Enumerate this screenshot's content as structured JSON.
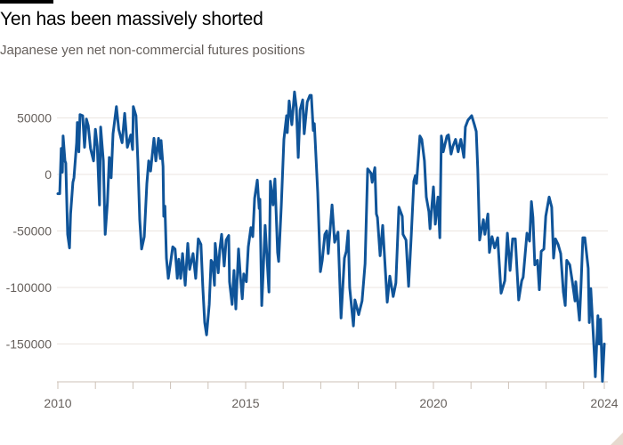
{
  "title": "Yen has been massively shorted",
  "subtitle": "Japanese yen net non-commercial futures positions",
  "chart_data": {
    "type": "line",
    "title": "Yen has been massively shorted",
    "subtitle": "Japanese yen net non-commercial futures positions",
    "xlabel": "",
    "ylabel": "",
    "xlim": [
      2010,
      2024.55
    ],
    "ylim": [
      -183000,
      75000
    ],
    "grid": true,
    "line_color": "#0f5499",
    "y_ticks": [
      50000,
      0,
      -50000,
      -100000,
      -150000
    ],
    "y_tick_labels": [
      "50000",
      "0",
      "-50000",
      "-100000",
      "-150000"
    ],
    "x_ticks": [
      2010,
      2015,
      2020,
      2024.55
    ],
    "x_tick_labels": [
      "2010",
      "2015",
      "2020",
      "2024"
    ],
    "x_minor_ticks": [
      2011,
      2012,
      2013,
      2014,
      2016,
      2017,
      2018,
      2019,
      2021,
      2022,
      2023,
      2024
    ],
    "series": [
      {
        "points": [
          [
            2010.0,
            -17000
          ],
          [
            2010.05,
            -17000
          ],
          [
            2010.09,
            23000
          ],
          [
            2010.12,
            2000
          ],
          [
            2010.14,
            34000
          ],
          [
            2010.19,
            12000
          ],
          [
            2010.21,
            10000
          ],
          [
            2010.26,
            -53000
          ],
          [
            2010.31,
            -65000
          ],
          [
            2010.34,
            -35000
          ],
          [
            2010.4,
            -7000
          ],
          [
            2010.43,
            -3000
          ],
          [
            2010.5,
            28000
          ],
          [
            2010.52,
            46000
          ],
          [
            2010.56,
            20000
          ],
          [
            2010.59,
            53000
          ],
          [
            2010.66,
            52000
          ],
          [
            2010.71,
            24000
          ],
          [
            2010.76,
            49000
          ],
          [
            2010.81,
            43000
          ],
          [
            2010.87,
            23000
          ],
          [
            2010.95,
            12000
          ],
          [
            2011.0,
            40000
          ],
          [
            2011.05,
            25000
          ],
          [
            2011.11,
            -27000
          ],
          [
            2011.14,
            42000
          ],
          [
            2011.21,
            12000
          ],
          [
            2011.26,
            -53000
          ],
          [
            2011.32,
            -25000
          ],
          [
            2011.37,
            15000
          ],
          [
            2011.42,
            -3000
          ],
          [
            2011.47,
            36000
          ],
          [
            2011.56,
            60000
          ],
          [
            2011.62,
            40000
          ],
          [
            2011.71,
            28000
          ],
          [
            2011.78,
            54000
          ],
          [
            2011.85,
            24000
          ],
          [
            2011.94,
            35000
          ],
          [
            2011.99,
            22000
          ],
          [
            2012.01,
            60000
          ],
          [
            2012.08,
            52000
          ],
          [
            2012.13,
            12000
          ],
          [
            2012.18,
            -40000
          ],
          [
            2012.23,
            -66000
          ],
          [
            2012.3,
            -55000
          ],
          [
            2012.37,
            -8000
          ],
          [
            2012.42,
            12000
          ],
          [
            2012.47,
            3000
          ],
          [
            2012.56,
            32000
          ],
          [
            2012.61,
            12000
          ],
          [
            2012.68,
            32000
          ],
          [
            2012.73,
            14000
          ],
          [
            2012.75,
            30000
          ],
          [
            2012.8,
            7000
          ],
          [
            2012.82,
            -37000
          ],
          [
            2012.85,
            -28000
          ],
          [
            2012.89,
            -74000
          ],
          [
            2012.94,
            -92000
          ],
          [
            2013.01,
            -76000
          ],
          [
            2013.06,
            -64000
          ],
          [
            2013.12,
            -66000
          ],
          [
            2013.18,
            -92000
          ],
          [
            2013.22,
            -75000
          ],
          [
            2013.27,
            -92000
          ],
          [
            2013.32,
            -70000
          ],
          [
            2013.39,
            -98000
          ],
          [
            2013.46,
            -61000
          ],
          [
            2013.51,
            -84000
          ],
          [
            2013.6,
            -70000
          ],
          [
            2013.67,
            -92000
          ],
          [
            2013.74,
            -57000
          ],
          [
            2013.81,
            -62000
          ],
          [
            2013.86,
            -100000
          ],
          [
            2013.91,
            -131000
          ],
          [
            2013.96,
            -142000
          ],
          [
            2014.03,
            -115000
          ],
          [
            2014.08,
            -76000
          ],
          [
            2014.12,
            -78000
          ],
          [
            2014.17,
            -98000
          ],
          [
            2014.19,
            -61000
          ],
          [
            2014.27,
            -87000
          ],
          [
            2014.31,
            -67000
          ],
          [
            2014.36,
            -53000
          ],
          [
            2014.43,
            -81000
          ],
          [
            2014.48,
            -58000
          ],
          [
            2014.55,
            -54000
          ],
          [
            2014.57,
            -95000
          ],
          [
            2014.64,
            -115000
          ],
          [
            2014.69,
            -85000
          ],
          [
            2014.74,
            -119000
          ],
          [
            2014.81,
            -66000
          ],
          [
            2014.86,
            -90000
          ],
          [
            2014.91,
            -110000
          ],
          [
            2014.95,
            -88000
          ],
          [
            2015.02,
            -95000
          ],
          [
            2015.07,
            -64000
          ],
          [
            2015.14,
            -47000
          ],
          [
            2015.19,
            -55000
          ],
          [
            2015.24,
            -21000
          ],
          [
            2015.31,
            -5000
          ],
          [
            2015.36,
            -30000
          ],
          [
            2015.38,
            -22000
          ],
          [
            2015.43,
            -116000
          ],
          [
            2015.47,
            -85000
          ],
          [
            2015.52,
            -45000
          ],
          [
            2015.62,
            -104000
          ],
          [
            2015.66,
            -6000
          ],
          [
            2015.73,
            -27000
          ],
          [
            2015.78,
            -4000
          ],
          [
            2015.85,
            -69000
          ],
          [
            2015.88,
            -77000
          ],
          [
            2015.95,
            -27000
          ],
          [
            2016.02,
            31000
          ],
          [
            2016.09,
            52000
          ],
          [
            2016.11,
            37000
          ],
          [
            2016.16,
            65000
          ],
          [
            2016.23,
            44000
          ],
          [
            2016.3,
            73000
          ],
          [
            2016.35,
            59000
          ],
          [
            2016.4,
            15000
          ],
          [
            2016.45,
            57000
          ],
          [
            2016.52,
            66000
          ],
          [
            2016.56,
            36000
          ],
          [
            2016.64,
            64000
          ],
          [
            2016.71,
            70000
          ],
          [
            2016.75,
            70000
          ],
          [
            2016.8,
            39000
          ],
          [
            2016.83,
            45000
          ],
          [
            2016.92,
            -16000
          ],
          [
            2016.99,
            -86000
          ],
          [
            2017.04,
            -76000
          ],
          [
            2017.11,
            -53000
          ],
          [
            2017.16,
            -50000
          ],
          [
            2017.2,
            -70000
          ],
          [
            2017.3,
            -27000
          ],
          [
            2017.37,
            -60000
          ],
          [
            2017.46,
            -51000
          ],
          [
            2017.54,
            -127000
          ],
          [
            2017.63,
            -74000
          ],
          [
            2017.68,
            -68000
          ],
          [
            2017.73,
            -50000
          ],
          [
            2017.77,
            -100000
          ],
          [
            2017.87,
            -134000
          ],
          [
            2017.91,
            -111000
          ],
          [
            2018.01,
            -124000
          ],
          [
            2018.1,
            -112000
          ],
          [
            2018.18,
            -79000
          ],
          [
            2018.25,
            5000
          ],
          [
            2018.34,
            1000
          ],
          [
            2018.37,
            -7000
          ],
          [
            2018.44,
            6000
          ],
          [
            2018.48,
            -35000
          ],
          [
            2018.51,
            -38000
          ],
          [
            2018.58,
            -72000
          ],
          [
            2018.65,
            -45000
          ],
          [
            2018.77,
            -113000
          ],
          [
            2018.84,
            -90000
          ],
          [
            2018.93,
            -108000
          ],
          [
            2019.0,
            -96000
          ],
          [
            2019.08,
            -29000
          ],
          [
            2019.17,
            -37000
          ],
          [
            2019.19,
            -53000
          ],
          [
            2019.27,
            -58000
          ],
          [
            2019.34,
            -99000
          ],
          [
            2019.41,
            -54000
          ],
          [
            2019.48,
            -6000
          ],
          [
            2019.52,
            -1000
          ],
          [
            2019.55,
            -8000
          ],
          [
            2019.64,
            34000
          ],
          [
            2019.69,
            31000
          ],
          [
            2019.76,
            12000
          ],
          [
            2019.81,
            -20000
          ],
          [
            2019.88,
            -33000
          ],
          [
            2019.91,
            -48000
          ],
          [
            2020.0,
            -11000
          ],
          [
            2020.05,
            -44000
          ],
          [
            2020.12,
            -20000
          ],
          [
            2020.17,
            -56000
          ],
          [
            2020.21,
            34000
          ],
          [
            2020.26,
            20000
          ],
          [
            2020.36,
            34000
          ],
          [
            2020.4,
            35000
          ],
          [
            2020.47,
            18000
          ],
          [
            2020.52,
            25000
          ],
          [
            2020.59,
            31000
          ],
          [
            2020.66,
            20000
          ],
          [
            2020.73,
            31000
          ],
          [
            2020.81,
            15000
          ],
          [
            2020.85,
            42000
          ],
          [
            2020.92,
            48000
          ],
          [
            2021.02,
            52000
          ],
          [
            2021.09,
            44000
          ],
          [
            2021.14,
            38000
          ],
          [
            2021.18,
            5000
          ],
          [
            2021.23,
            -58000
          ],
          [
            2021.33,
            -40000
          ],
          [
            2021.37,
            -53000
          ],
          [
            2021.45,
            -35000
          ],
          [
            2021.49,
            -69000
          ],
          [
            2021.56,
            -55000
          ],
          [
            2021.63,
            -65000
          ],
          [
            2021.71,
            -56000
          ],
          [
            2021.8,
            -105000
          ],
          [
            2021.9,
            -94000
          ],
          [
            2021.97,
            -52000
          ],
          [
            2022.04,
            -85000
          ],
          [
            2022.11,
            -57000
          ],
          [
            2022.18,
            -57000
          ],
          [
            2022.27,
            -111000
          ],
          [
            2022.35,
            -94000
          ],
          [
            2022.39,
            -91000
          ],
          [
            2022.49,
            -52000
          ],
          [
            2022.56,
            -59000
          ],
          [
            2022.61,
            -24000
          ],
          [
            2022.65,
            -38000
          ],
          [
            2022.7,
            -80000
          ],
          [
            2022.77,
            -76000
          ],
          [
            2022.82,
            -102000
          ],
          [
            2022.87,
            -68000
          ],
          [
            2022.94,
            -66000
          ],
          [
            2022.99,
            -37000
          ],
          [
            2023.08,
            -20000
          ],
          [
            2023.15,
            -29000
          ],
          [
            2023.2,
            -74000
          ],
          [
            2023.25,
            -57000
          ],
          [
            2023.32,
            -62000
          ],
          [
            2023.39,
            -70000
          ],
          [
            2023.46,
            -104000
          ],
          [
            2023.51,
            -116000
          ],
          [
            2023.55,
            -76000
          ],
          [
            2023.63,
            -80000
          ],
          [
            2023.7,
            -95000
          ],
          [
            2023.77,
            -112000
          ],
          [
            2023.79,
            -95000
          ],
          [
            2023.89,
            -129000
          ],
          [
            2023.93,
            -99000
          ],
          [
            2023.98,
            -56000
          ],
          [
            2024.03,
            -56000
          ],
          [
            2024.12,
            -83000
          ],
          [
            2024.15,
            -131000
          ],
          [
            2024.19,
            -101000
          ],
          [
            2024.29,
            -162000
          ],
          [
            2024.31,
            -179000
          ],
          [
            2024.38,
            -125000
          ],
          [
            2024.41,
            -150000
          ],
          [
            2024.45,
            -128000
          ],
          [
            2024.5,
            -183000
          ],
          [
            2024.55,
            -150000
          ]
        ]
      }
    ]
  }
}
